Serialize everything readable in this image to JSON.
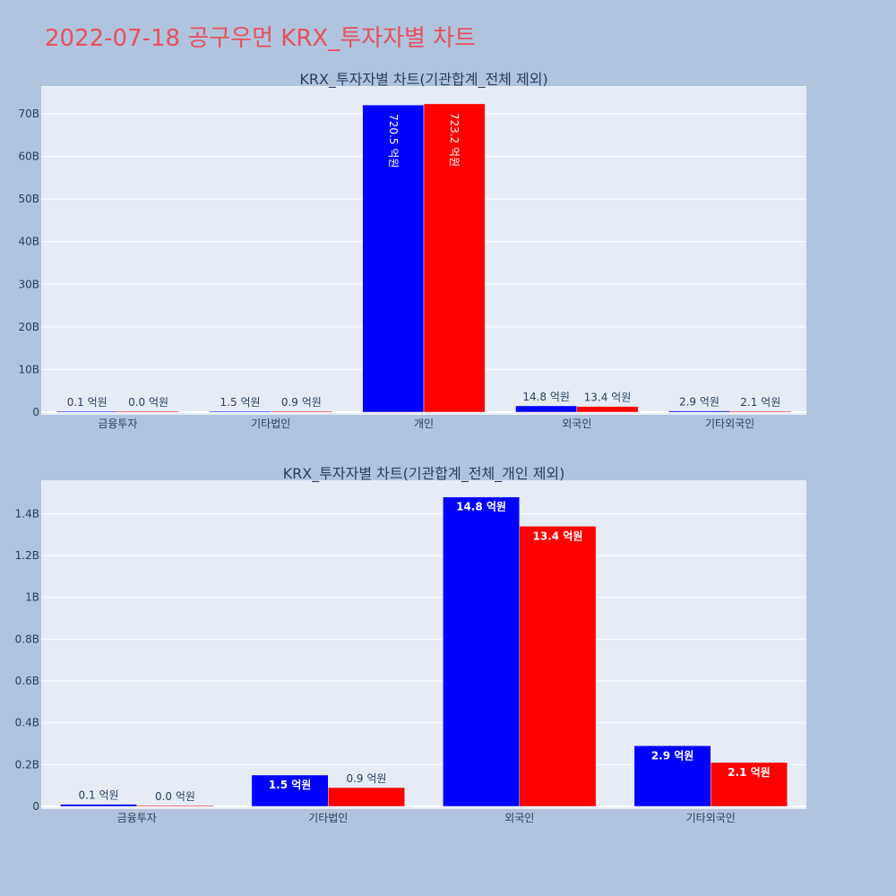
{
  "page_title": "2022-07-18 공구우먼 KRX_투자자별 차트",
  "colors": {
    "background": "#b0c4de",
    "plot_bg": "#e5ecf6",
    "series1": "#0000ff",
    "series2": "#ff0000",
    "title": "#e8505b"
  },
  "chart_data": [
    {
      "type": "bar",
      "title": "KRX_투자자별 차트(기관합계_전체 제외)",
      "categories": [
        "금융투자",
        "기타법인",
        "개인",
        "외국인",
        "기타외국인"
      ],
      "yticks": [
        "0",
        "10B",
        "20B",
        "30B",
        "40B",
        "50B",
        "60B",
        "70B"
      ],
      "ylim": [
        0,
        76500000000
      ],
      "series": [
        {
          "color": "#0000ff",
          "values": [
            10000000,
            150000000,
            72050000000,
            1480000000,
            290000000
          ],
          "labels": [
            "0.1 억원",
            "1.5 억원",
            "720.5 억원",
            "14.8 억원",
            "2.9 억원"
          ]
        },
        {
          "color": "#ff0000",
          "values": [
            0,
            90000000,
            72320000000,
            1340000000,
            210000000
          ],
          "labels": [
            "0.0 억원",
            "0.9 억원",
            "723.2 억원",
            "13.4 억원",
            "2.1 억원"
          ]
        }
      ]
    },
    {
      "type": "bar",
      "title": "KRX_투자자별 차트(기관합계_전체_개인 제외)",
      "categories": [
        "금융투자",
        "기타법인",
        "외국인",
        "기타외국인"
      ],
      "yticks": [
        "0",
        "0.2B",
        "0.4B",
        "0.6B",
        "0.8B",
        "1B",
        "1.2B",
        "1.4B"
      ],
      "ylim": [
        0,
        1560000000
      ],
      "series": [
        {
          "color": "#0000ff",
          "values": [
            10000000,
            150000000,
            1480000000,
            290000000
          ],
          "labels": [
            "0.1 억원",
            "1.5 억원",
            "14.8 억원",
            "2.9 억원"
          ]
        },
        {
          "color": "#ff0000",
          "values": [
            0,
            90000000,
            1340000000,
            210000000
          ],
          "labels": [
            "0.0 억원",
            "0.9 억원",
            "13.4 억원",
            "2.1 억원"
          ]
        }
      ]
    }
  ]
}
